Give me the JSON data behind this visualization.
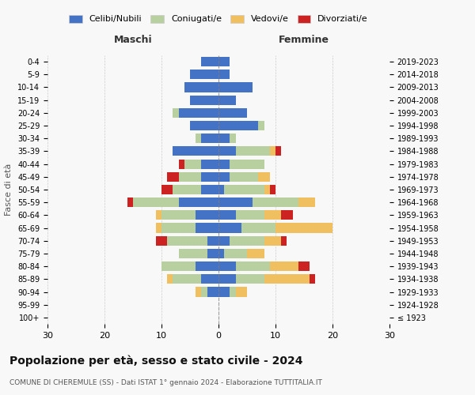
{
  "age_groups": [
    "100+",
    "95-99",
    "90-94",
    "85-89",
    "80-84",
    "75-79",
    "70-74",
    "65-69",
    "60-64",
    "55-59",
    "50-54",
    "45-49",
    "40-44",
    "35-39",
    "30-34",
    "25-29",
    "20-24",
    "15-19",
    "10-14",
    "5-9",
    "0-4"
  ],
  "birth_years": [
    "≤ 1923",
    "1924-1928",
    "1929-1933",
    "1934-1938",
    "1939-1943",
    "1944-1948",
    "1949-1953",
    "1954-1958",
    "1959-1963",
    "1964-1968",
    "1969-1973",
    "1974-1978",
    "1979-1983",
    "1984-1988",
    "1989-1993",
    "1994-1998",
    "1999-2003",
    "2004-2008",
    "2009-2013",
    "2014-2018",
    "2019-2023"
  ],
  "colors": {
    "celibe": "#4472c4",
    "coniugato": "#b8cfa0",
    "vedovo": "#f0c060",
    "divorziato": "#cc2222"
  },
  "maschi": {
    "celibe": [
      0,
      0,
      2,
      3,
      4,
      2,
      2,
      4,
      4,
      7,
      3,
      3,
      3,
      8,
      3,
      5,
      7,
      5,
      6,
      5,
      3
    ],
    "coniugato": [
      0,
      0,
      1,
      5,
      6,
      5,
      7,
      6,
      6,
      8,
      5,
      4,
      3,
      0,
      1,
      0,
      1,
      0,
      0,
      0,
      0
    ],
    "vedovo": [
      0,
      0,
      1,
      1,
      0,
      0,
      0,
      1,
      1,
      0,
      0,
      0,
      0,
      0,
      0,
      0,
      0,
      0,
      0,
      0,
      0
    ],
    "divorziato": [
      0,
      0,
      0,
      0,
      0,
      0,
      2,
      0,
      0,
      1,
      2,
      2,
      1,
      0,
      0,
      0,
      0,
      0,
      0,
      0,
      0
    ]
  },
  "femmine": {
    "celibe": [
      0,
      0,
      2,
      3,
      3,
      1,
      2,
      4,
      3,
      6,
      1,
      2,
      2,
      3,
      2,
      7,
      5,
      3,
      6,
      2,
      2
    ],
    "coniugato": [
      0,
      0,
      1,
      5,
      6,
      4,
      6,
      6,
      5,
      8,
      7,
      5,
      6,
      6,
      1,
      1,
      0,
      0,
      0,
      0,
      0
    ],
    "vedovo": [
      0,
      0,
      2,
      8,
      5,
      3,
      3,
      10,
      3,
      3,
      1,
      2,
      0,
      1,
      0,
      0,
      0,
      0,
      0,
      0,
      0
    ],
    "divorziato": [
      0,
      0,
      0,
      1,
      2,
      0,
      1,
      0,
      2,
      0,
      1,
      0,
      0,
      1,
      0,
      0,
      0,
      0,
      0,
      0,
      0
    ]
  },
  "xlim": 30,
  "title": "Popolazione per età, sesso e stato civile - 2024",
  "subtitle": "COMUNE DI CHEREMULE (SS) - Dati ISTAT 1° gennaio 2024 - Elaborazione TUTTITALIA.IT",
  "ylabel_left": "Fasce di età",
  "xlabel_maschi": "Maschi",
  "xlabel_femmine": "Femmine",
  "legend_labels": [
    "Celibi/Nubili",
    "Coniugati/e",
    "Vedovi/e",
    "Divorziati/e"
  ],
  "bg_color": "#f8f8f8",
  "grid_color": "#cccccc"
}
